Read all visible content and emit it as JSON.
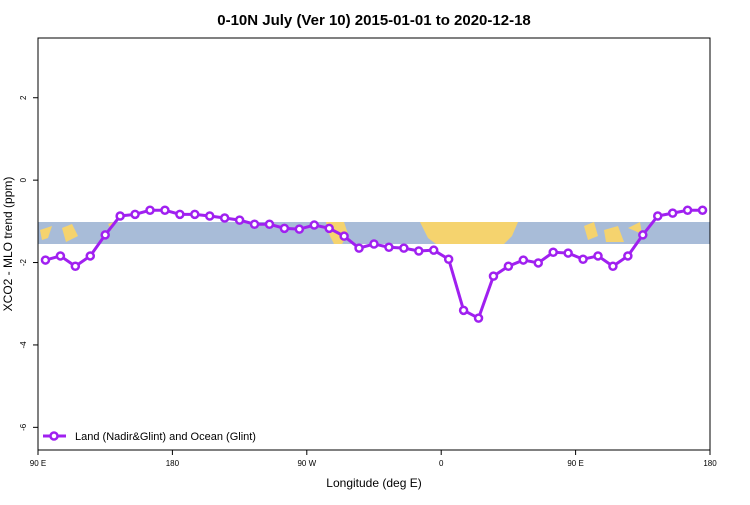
{
  "chart_data": {
    "type": "line",
    "title": "0-10N July (Ver 10)   2015-01-01 to 2020-12-18",
    "x_label": "Longitude (deg E)",
    "y_label": "XCO2 - MLO trend (ppm)",
    "x": [
      95,
      105,
      115,
      125,
      135,
      145,
      155,
      165,
      175,
      185,
      195,
      205,
      215,
      225,
      235,
      245,
      255,
      265,
      275,
      285,
      295,
      305,
      315,
      325,
      335,
      345,
      355,
      365,
      375,
      385,
      395,
      405,
      415,
      425,
      435,
      445,
      455,
      465,
      475,
      485,
      495,
      505,
      515,
      525,
      535
    ],
    "series": [
      {
        "name": "Land (Nadir&Glint) and Ocean (Glint)",
        "color": "#a020f0",
        "values": [
          -1.94,
          -1.84,
          -2.09,
          -1.84,
          -1.33,
          -0.87,
          -0.83,
          -0.73,
          -0.73,
          -0.83,
          -0.83,
          -0.87,
          -0.92,
          -0.97,
          -1.07,
          -1.07,
          -1.17,
          -1.19,
          -1.09,
          -1.17,
          -1.36,
          -1.65,
          -1.55,
          -1.63,
          -1.65,
          -1.72,
          -1.7,
          -1.92,
          -3.16,
          -3.35,
          -2.33,
          -2.09,
          -1.94,
          -2.01,
          -1.75,
          -1.77,
          -1.92,
          -1.84,
          -2.09,
          -1.84,
          -1.33,
          -0.87,
          -0.8,
          -0.73,
          -0.73
        ]
      }
    ],
    "xlim": [
      90,
      540
    ],
    "xticks": [
      {
        "value": 90,
        "label": "90 E"
      },
      180,
      {
        "value": 270,
        "label": "90 W"
      },
      {
        "value": 360,
        "label": "0"
      },
      {
        "value": 450,
        "label": "90 E"
      },
      {
        "value": 540,
        "label": "180"
      }
    ],
    "ylim": [
      -6.55,
      3.45
    ],
    "yticks": [
      -6,
      -4,
      -2,
      0,
      2
    ],
    "legend": "bottom-left"
  }
}
